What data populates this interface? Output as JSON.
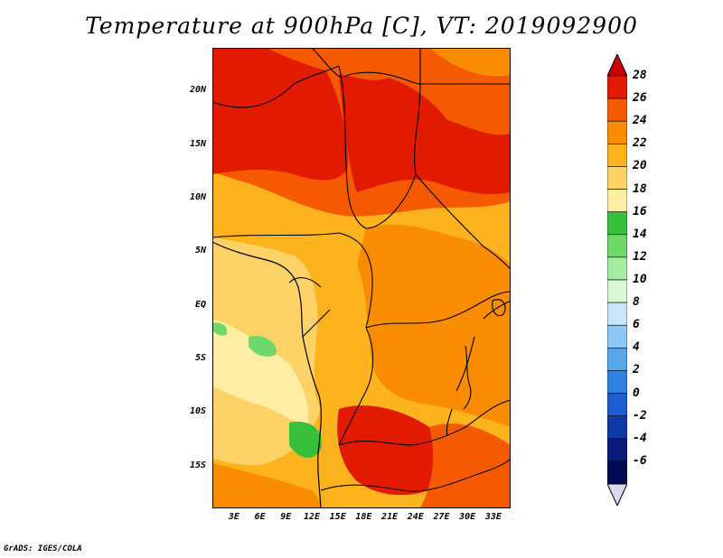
{
  "title": "Temperature at 900hPa [C], VT: 2019092900",
  "credit": "GrADS: IGES/COLA",
  "map": {
    "lat_ticks": [
      {
        "label": "20N",
        "value": 20
      },
      {
        "label": "15N",
        "value": 15
      },
      {
        "label": "10N",
        "value": 10
      },
      {
        "label": "5N",
        "value": 5
      },
      {
        "label": "EQ",
        "value": 0
      },
      {
        "label": "5S",
        "value": -5
      },
      {
        "label": "10S",
        "value": -10
      },
      {
        "label": "15S",
        "value": -15
      }
    ],
    "lon_ticks": [
      {
        "label": "3E",
        "value": 3
      },
      {
        "label": "6E",
        "value": 6
      },
      {
        "label": "9E",
        "value": 9
      },
      {
        "label": "12E",
        "value": 12
      },
      {
        "label": "15E",
        "value": 15
      },
      {
        "label": "18E",
        "value": 18
      },
      {
        "label": "21E",
        "value": 21
      },
      {
        "label": "24E",
        "value": 24
      },
      {
        "label": "27E",
        "value": 27
      },
      {
        "label": "30E",
        "value": 30
      },
      {
        "label": "33E",
        "value": 33
      }
    ],
    "lon_range": [
      0.5,
      35
    ],
    "lat_range": [
      -19,
      24
    ]
  },
  "colorbar": {
    "levels": [
      "28",
      "26",
      "24",
      "22",
      "20",
      "18",
      "16",
      "14",
      "12",
      "10",
      "8",
      "6",
      "4",
      "2",
      "0",
      "-2",
      "-4",
      "-6"
    ],
    "colors": [
      "#c80000",
      "#e11a00",
      "#f55a00",
      "#fa8c00",
      "#fcb31e",
      "#fdd267",
      "#feeea3",
      "#38c03a",
      "#6fd86a",
      "#a6ecA0",
      "#d9f8d4",
      "#c8e6fa",
      "#8ec7f3",
      "#58a7ea",
      "#2f82e0",
      "#1a5ecf",
      "#1039a8",
      "#0a1a78",
      "#000a55"
    ],
    "top_color": "#c80000",
    "bottom_color": "#d8d8f0"
  }
}
